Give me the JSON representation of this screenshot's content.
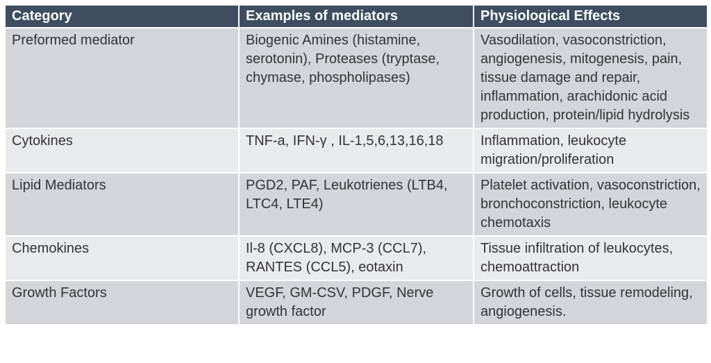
{
  "table": {
    "headers": [
      "Category",
      "Examples of mediators",
      "Physiological Effects"
    ],
    "rows": [
      {
        "category": "Preformed mediator",
        "examples": "Biogenic Amines (histamine, serotonin), Proteases (tryptase, chymase, phospholipases)",
        "effects": "Vasodilation, vasoconstriction, angiogenesis, mitogenesis, pain, tissue damage and repair, inflammation, arachidonic acid production, protein/lipid hydrolysis"
      },
      {
        "category": "Cytokines",
        "examples": "TNF-a, IFN-γ , IL-1,5,6,13,16,18",
        "effects": "Inflammation, leukocyte migration/proliferation"
      },
      {
        "category": "Lipid Mediators",
        "examples": "PGD2, PAF, Leukotrienes (LTB4, LTC4, LTE4)",
        "effects": "Platelet activation, vasoconstriction, bronchoconstriction, leukocyte chemotaxis"
      },
      {
        "category": "Chemokines",
        "examples": "Il-8 (CXCL8), MCP-3 (CCL7), RANTES (CCL5), eotaxin",
        "effects": "Tissue infiltration of leukocytes, chemoattraction"
      },
      {
        "category": "Growth Factors",
        "examples": "VEGF, GM-CSV, PDGF, Nerve growth factor",
        "effects": "Growth of cells, tissue remodeling, angiogenesis."
      }
    ]
  }
}
